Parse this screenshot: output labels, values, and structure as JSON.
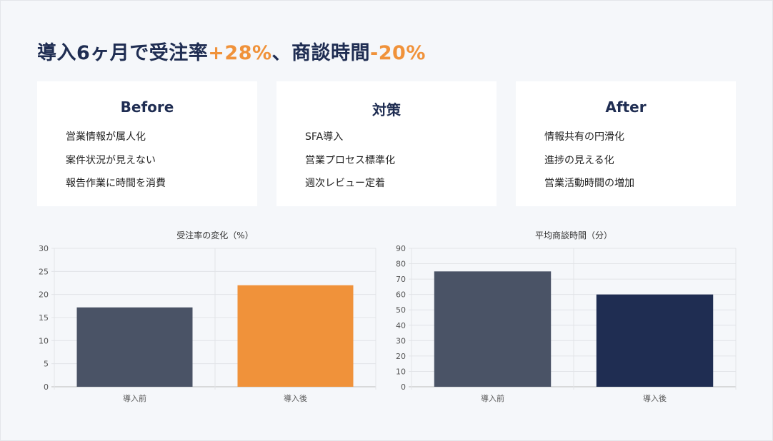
{
  "headline": {
    "prefix": "導入6ヶ月で受注率",
    "accent1": "+28%",
    "middle": "、商談時間",
    "accent2": "-20%"
  },
  "cards": [
    {
      "title": "Before",
      "items": [
        "営業情報が属人化",
        "案件状況が見えない",
        "報告作業に時間を消費"
      ]
    },
    {
      "title": "対策",
      "items": [
        "SFA導入",
        "営業プロセス標準化",
        "週次レビュー定着"
      ]
    },
    {
      "title": "After",
      "items": [
        "情報共有の円滑化",
        "進捗の見える化",
        "営業活動時間の増加"
      ]
    }
  ],
  "colors": {
    "navy": "#1f2d52",
    "slate": "#4a5366",
    "orange": "#f0923a"
  },
  "chart_data": [
    {
      "type": "bar",
      "title": "受注率の変化（%）",
      "categories": [
        "導入前",
        "導入後"
      ],
      "values": [
        17.2,
        22.0
      ],
      "bar_colors": [
        "#4a5366",
        "#f0923a"
      ],
      "ylim": [
        0,
        30
      ],
      "yticks": [
        0,
        5,
        10,
        15,
        20,
        25,
        30
      ],
      "grid": true,
      "xlabel": "",
      "ylabel": ""
    },
    {
      "type": "bar",
      "title": "平均商談時間（分）",
      "categories": [
        "導入前",
        "導入後"
      ],
      "values": [
        75,
        60
      ],
      "bar_colors": [
        "#4a5366",
        "#1f2d52"
      ],
      "ylim": [
        0,
        90
      ],
      "yticks": [
        0,
        10,
        20,
        30,
        40,
        50,
        60,
        70,
        80,
        90
      ],
      "grid": true,
      "xlabel": "",
      "ylabel": ""
    }
  ]
}
